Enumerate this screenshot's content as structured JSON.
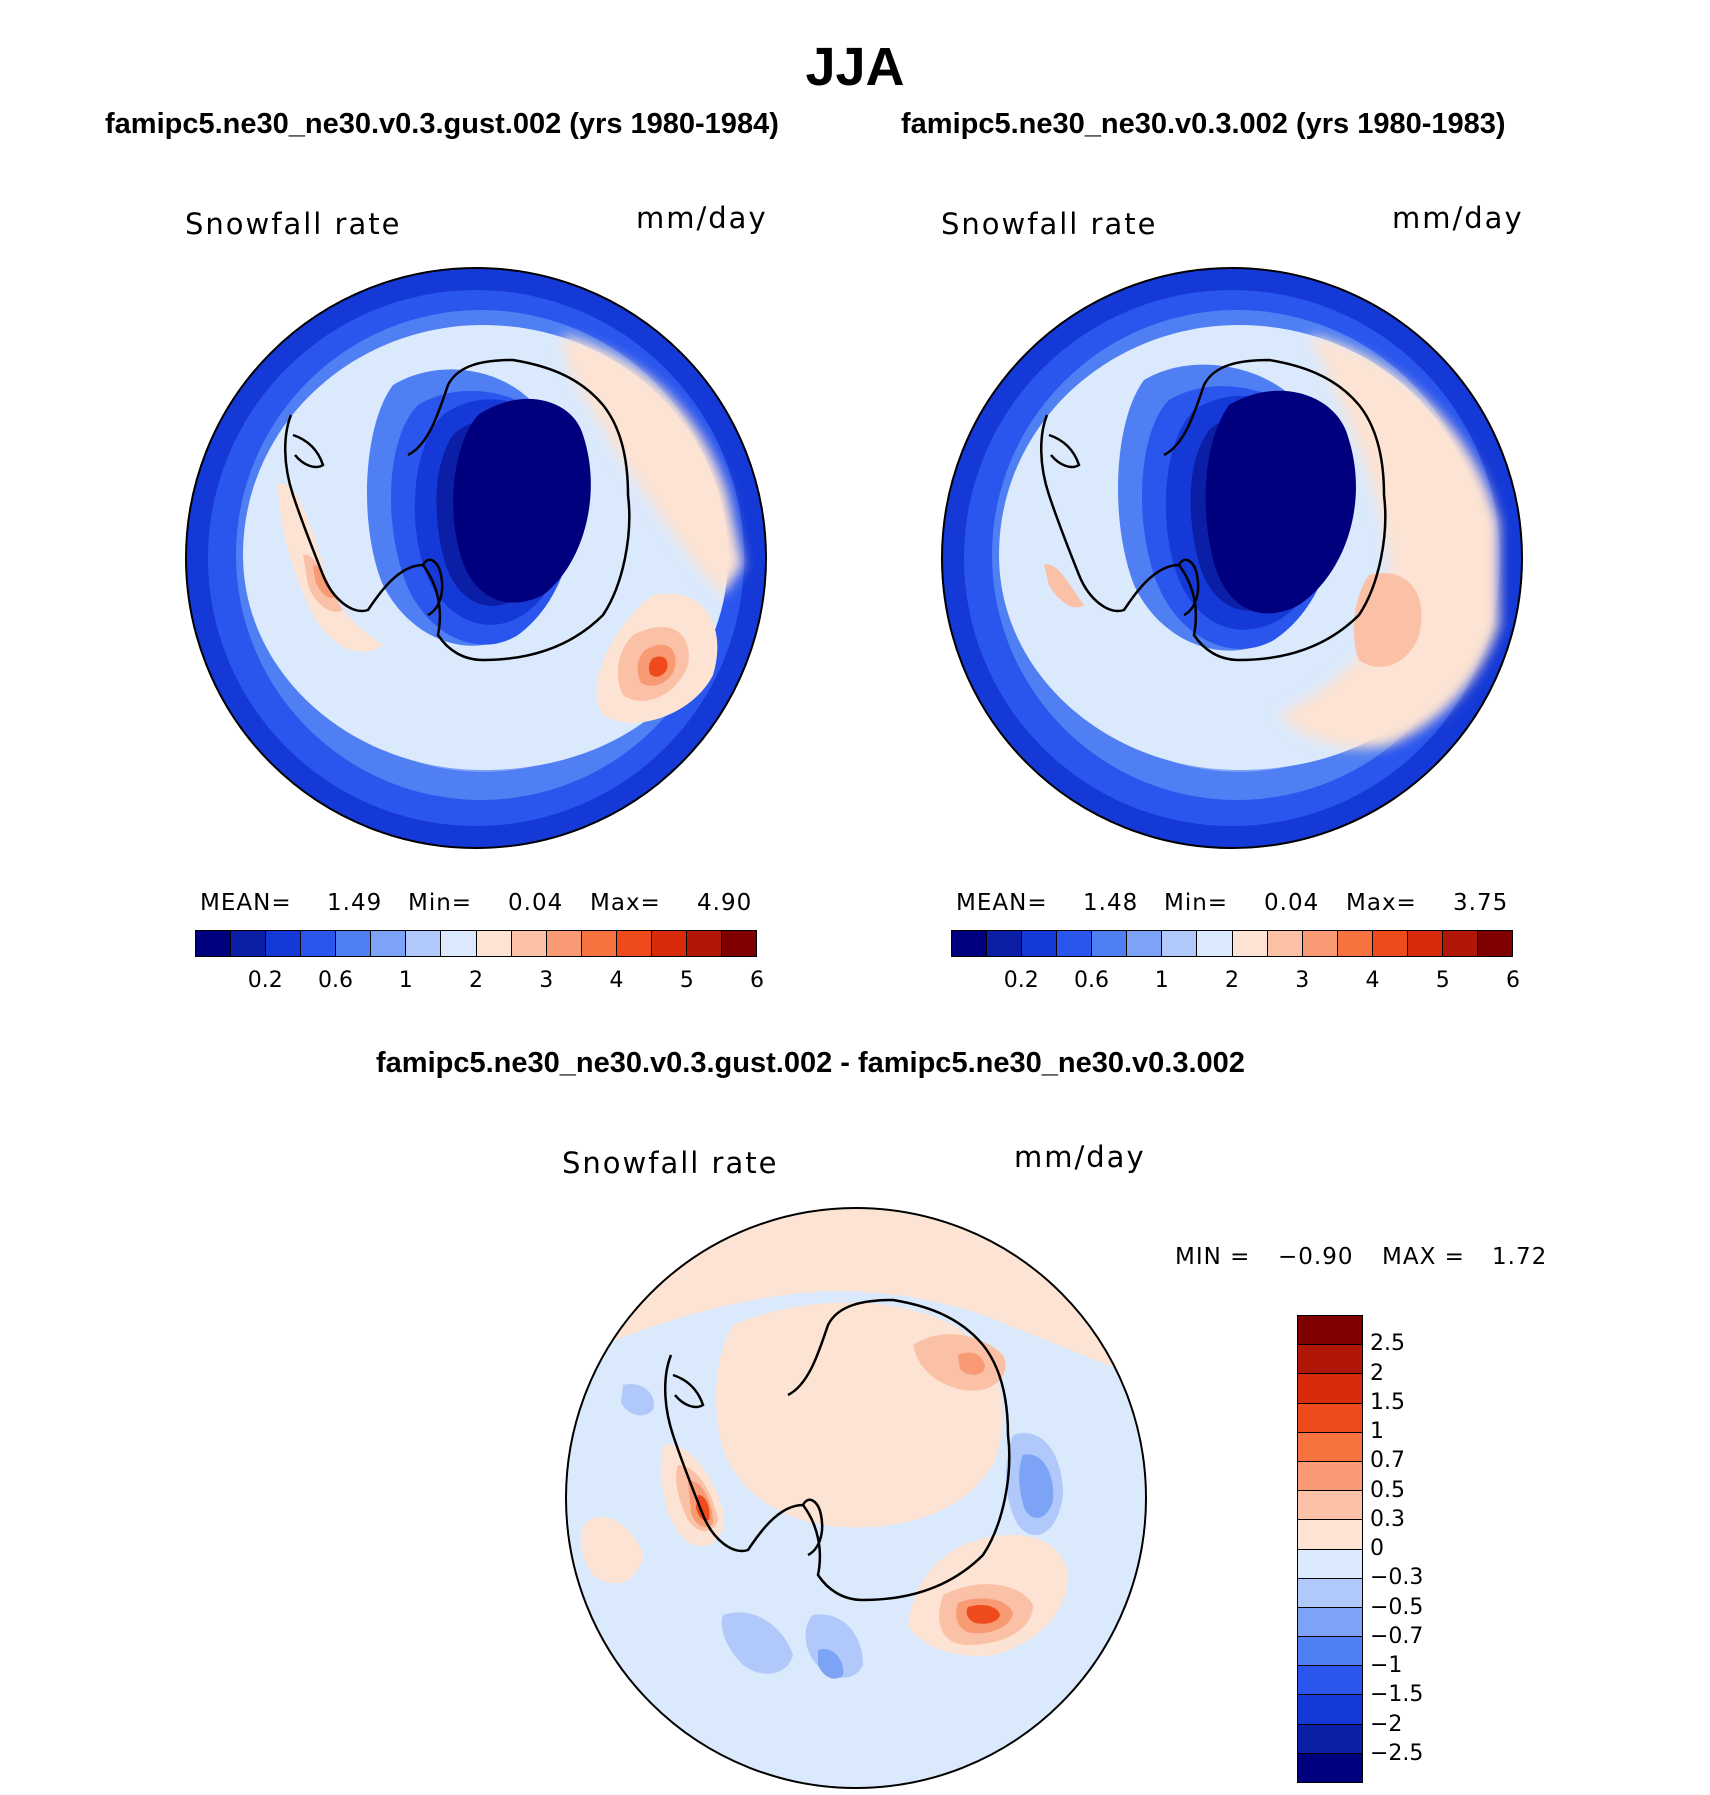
{
  "figure": {
    "season": "JJA",
    "title_a": "famipc5.ne30_ne30.v0.3.gust.002 (yrs 1980-1984)",
    "title_b": "famipc5.ne30_ne30.v0.3.002 (yrs 1980-1983)",
    "title_diff": "famipc5.ne30_ne30.v0.3.gust.002 - famipc5.ne30_ne30.v0.3.002"
  },
  "panels": [
    {
      "id": "a",
      "variable": "Snowfall rate",
      "units": "mm/day",
      "mean_label": "MEAN=",
      "mean": "1.49",
      "min_label": "Min=",
      "min": "0.04",
      "max_label": "Max=",
      "max": "4.90"
    },
    {
      "id": "b",
      "variable": "Snowfall rate",
      "units": "mm/day",
      "mean_label": "MEAN=",
      "mean": "1.48",
      "min_label": "Min=",
      "min": "0.04",
      "max_label": "Max=",
      "max": "3.75"
    },
    {
      "id": "diff",
      "variable": "Snowfall rate",
      "units": "mm/day",
      "min_label": "MIN =",
      "min": "−0.90",
      "max_label": "MAX =",
      "max": "1.72"
    }
  ],
  "colorbars": {
    "field": {
      "ticks": [
        "0.2",
        "0.6",
        "1",
        "2",
        "3",
        "4",
        "5",
        "6"
      ],
      "colors": [
        "#00007f",
        "#0a1fa6",
        "#1439d6",
        "#2a56ee",
        "#4f7ff3",
        "#7da3f7",
        "#b0c9fa",
        "#dbe9fc",
        "#fde3d3",
        "#fbc1a6",
        "#f89b74",
        "#f6723f",
        "#ef4a1b",
        "#d72b0c",
        "#b01706",
        "#7f0000"
      ]
    },
    "diff": {
      "ticks": [
        "2.5",
        "2",
        "1.5",
        "1",
        "0.7",
        "0.5",
        "0.3",
        "0",
        "−0.3",
        "−0.5",
        "−0.7",
        "−1",
        "−1.5",
        "−2",
        "−2.5"
      ],
      "colors": [
        "#7f0000",
        "#b01706",
        "#d72b0c",
        "#ef4a1b",
        "#f6723f",
        "#f89b74",
        "#fbc1a6",
        "#fde3d3",
        "#dbe9fc",
        "#b0c9fa",
        "#7da3f7",
        "#4f7ff3",
        "#2a56ee",
        "#1439d6",
        "#0a1fa6",
        "#00007f"
      ]
    }
  }
}
